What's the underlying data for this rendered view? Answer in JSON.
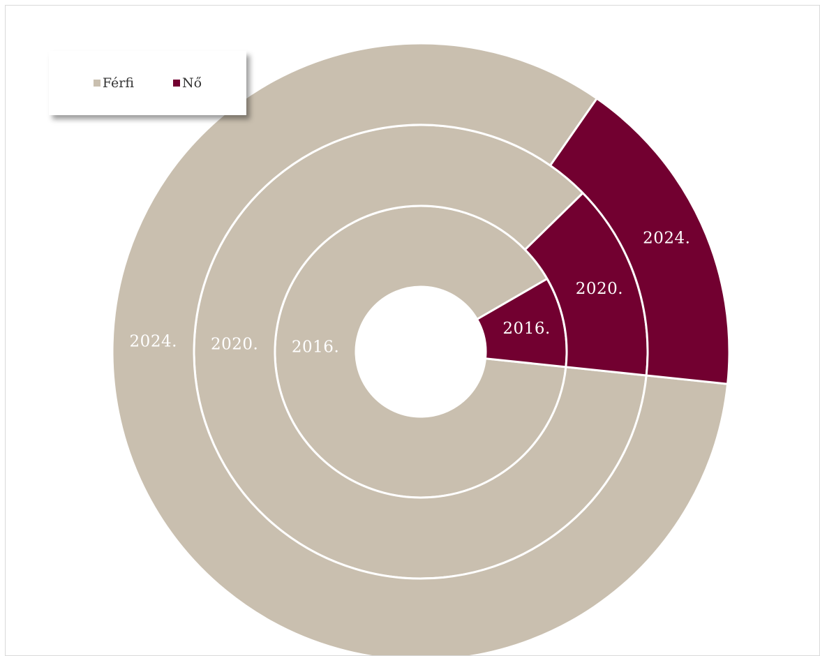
{
  "chart_data": {
    "type": "doughnut",
    "title": "",
    "legend": {
      "position": "top-left",
      "entries": [
        "Férfi",
        "Nő"
      ]
    },
    "colors": {
      "Férfi": "#c9bfaf",
      "Nő": "#720030"
    },
    "categories": [
      "Férfi",
      "Nő"
    ],
    "series": [
      {
        "name": "2016.",
        "ring": "inner",
        "values": [
          90,
          10
        ],
        "label": "2016."
      },
      {
        "name": "2020.",
        "ring": "middle",
        "values": [
          86,
          14
        ],
        "label": "2020."
      },
      {
        "name": "2024.",
        "ring": "outer",
        "values": [
          83,
          17
        ],
        "label": "2024."
      }
    ]
  }
}
